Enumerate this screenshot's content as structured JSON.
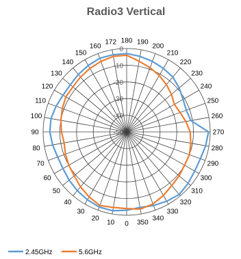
{
  "chart_data": {
    "type": "line",
    "subtype": "polar",
    "title": "Radio3 Vertical",
    "angle_labels": [
      "270",
      "280",
      "290",
      "300",
      "310",
      "320",
      "330",
      "340",
      "350",
      "0",
      "10",
      "20",
      "30",
      "40",
      "50",
      "60",
      "70",
      "80",
      "90",
      "100",
      "110",
      "120",
      "130",
      "140",
      "150",
      "160",
      "172",
      "180",
      "190",
      "200",
      "210",
      "220",
      "230",
      "240",
      "250",
      "260"
    ],
    "radial_tick_labels": [
      "0",
      "-10",
      "-20",
      "-30",
      "-40",
      "-50"
    ],
    "r_range": [
      -50,
      0
    ],
    "angle_zero_direction": "right",
    "angle_direction": "clockwise",
    "grid": true,
    "legend_position": "bottom-left",
    "series": [
      {
        "name": "2.45GHz",
        "color": "#5b9bd5",
        "values": [
          -1,
          -2,
          -3,
          -3,
          -2,
          -1,
          -2,
          -3,
          -4,
          -3,
          -2,
          -2,
          -3,
          -4,
          -5,
          -6,
          -6,
          -5,
          -4,
          -4,
          -5,
          -6,
          -6,
          -5,
          -4,
          -3,
          -3,
          -3,
          -4,
          -5,
          -6,
          -7,
          -9,
          -11,
          -12,
          -11
        ]
      },
      {
        "name": "5.6GHz",
        "color": "#ed7d31",
        "values": [
          -12,
          -11,
          -10,
          -10,
          -9,
          -8,
          -6,
          -4,
          -3,
          -4,
          -4,
          -3,
          -5,
          -7,
          -9,
          -10,
          -11,
          -12,
          -11,
          -10,
          -9,
          -8,
          -8,
          -7,
          -6,
          -5,
          -4,
          -4,
          -7,
          -9,
          -11,
          -13,
          -15,
          -17,
          -16,
          -14
        ]
      }
    ]
  }
}
